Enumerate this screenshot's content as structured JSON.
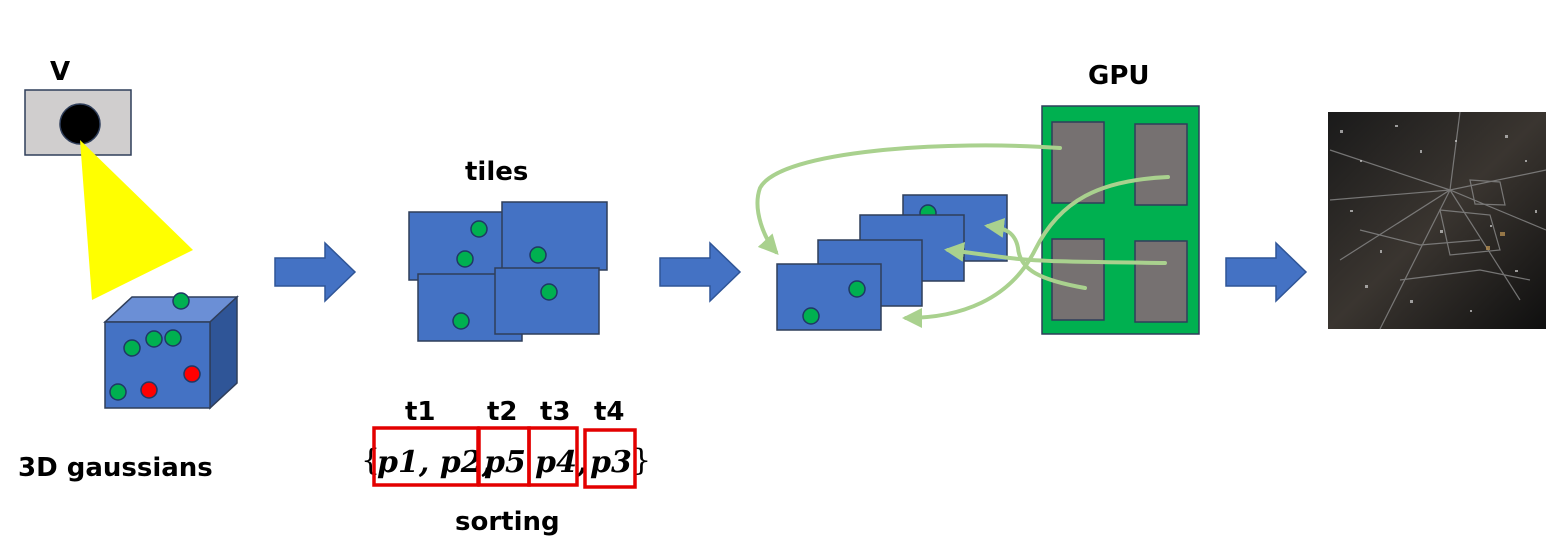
{
  "labels": {
    "camera": "V",
    "gaussians": "3D gaussians",
    "tiles": "tiles",
    "gpu": "GPU",
    "sorting": "sorting"
  },
  "sorting": {
    "tile_labels": [
      "t1",
      "t2",
      "t3",
      "t4"
    ],
    "open_brace": "{",
    "close_brace": "}",
    "group1": "p1, p2,",
    "group2": "p5",
    "group3": "p4,",
    "group4": "p3"
  },
  "colors": {
    "tile_blue": "#4472c4",
    "dot_green": "#00b050",
    "dot_red": "#ff0000",
    "cone_yellow": "#ffff00",
    "gpu_green": "#00b050",
    "gpu_core": "#767171",
    "flow_arrow": "#a9d18e",
    "sort_box": "#e30000"
  }
}
